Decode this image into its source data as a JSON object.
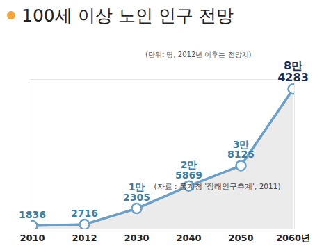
{
  "chart_data": {
    "type": "line",
    "title": "100세 이상 노인 인구 전망",
    "subtitle": "(단위: 명, 2012년 이후는 전망치)",
    "annotations": [
      "(자료 : 통계청 '장래인구추계', 2011)"
    ],
    "categories": [
      "2010",
      "2012",
      "2030",
      "2040",
      "2050",
      "2060년"
    ],
    "values": [
      1836,
      2716,
      12305,
      25869,
      38125,
      84283
    ],
    "value_labels": [
      "1836",
      "2716",
      "1만\n2305",
      "2만\n5869",
      "3만\n8125",
      "8만\n4283"
    ],
    "color": "#6a9fc9",
    "marker": "circle",
    "ylim": [
      0,
      90000
    ],
    "tick_labels": "x",
    "data_labels": true,
    "grid": false
  }
}
